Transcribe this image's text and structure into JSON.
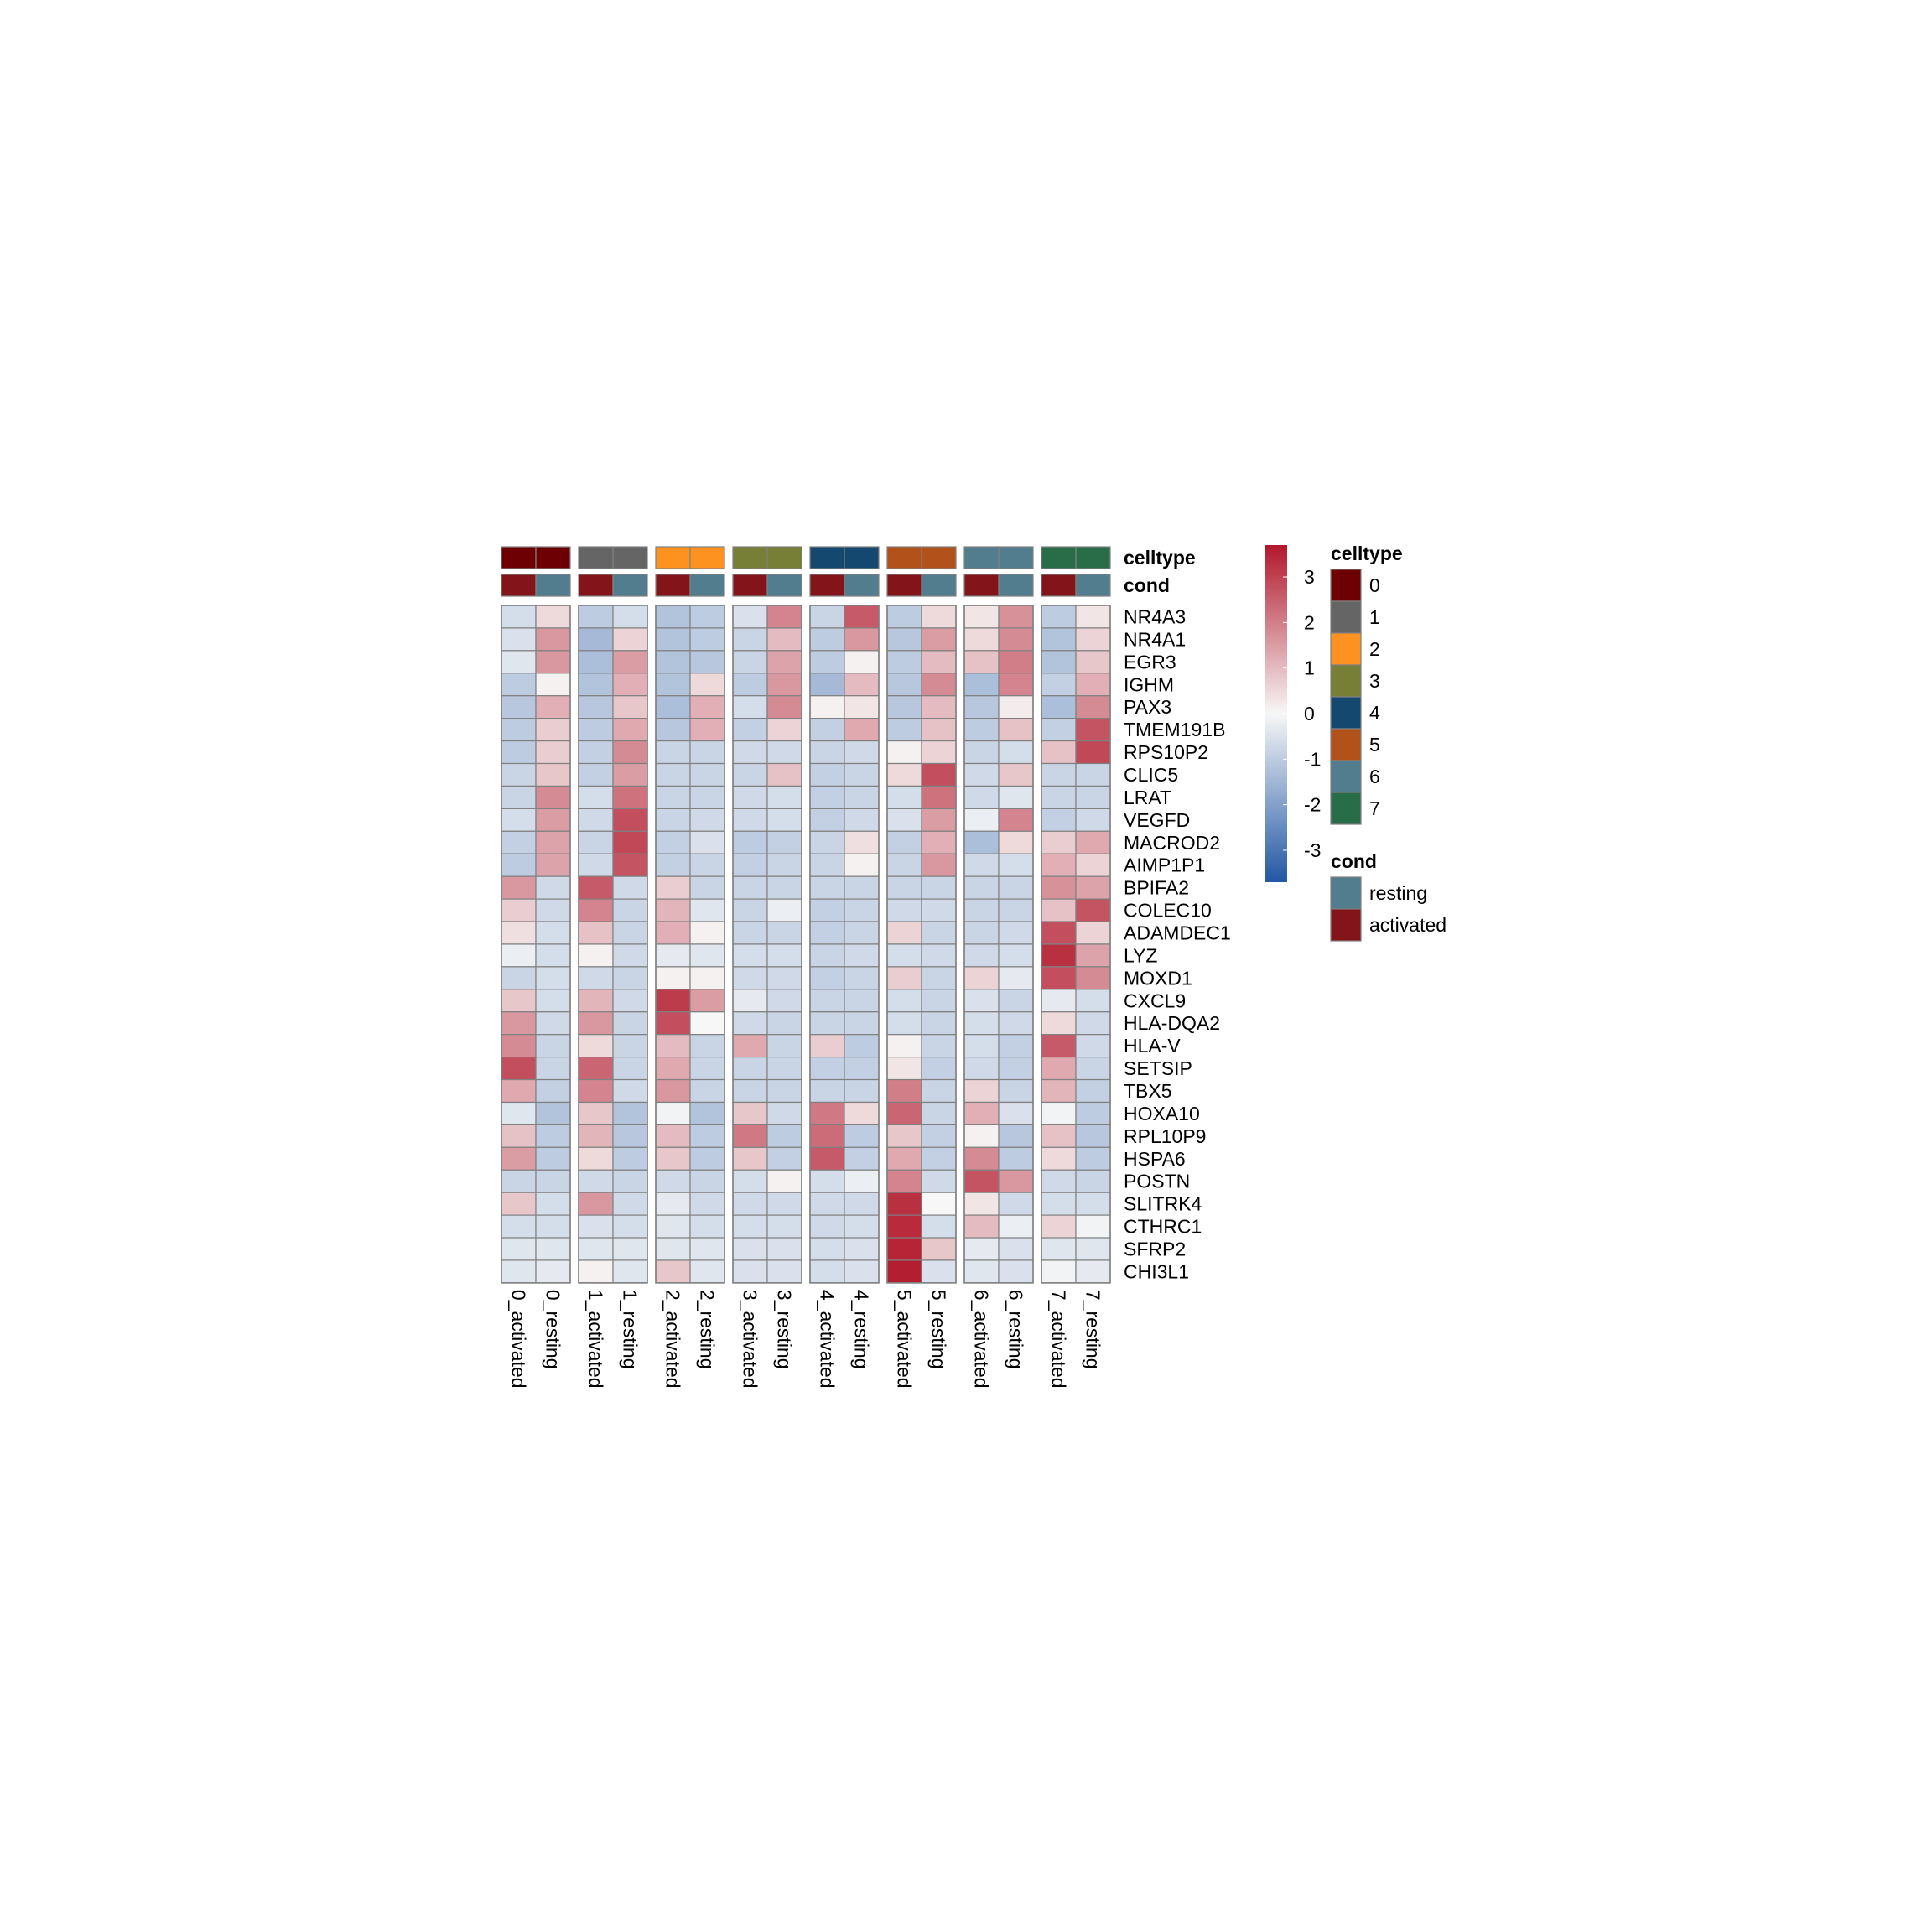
{
  "chart_data": {
    "type": "heatmap",
    "columns": [
      "0_activated",
      "0_resting",
      "1_activated",
      "1_resting",
      "2_activated",
      "2_resting",
      "3_activated",
      "3_resting",
      "4_activated",
      "4_resting",
      "5_activated",
      "5_resting",
      "6_activated",
      "6_resting",
      "7_activated",
      "7_resting"
    ],
    "rows": [
      "NR4A3",
      "NR4A1",
      "EGR3",
      "IGHM",
      "PAX3",
      "TMEM191B",
      "RPS10P2",
      "CLIC5",
      "LRAT",
      "VEGFD",
      "MACROD2",
      "AIMP1P1",
      "BPIFA2",
      "COLEC10",
      "ADAMDEC1",
      "LYZ",
      "MOXD1",
      "CXCL9",
      "HLA-DQA2",
      "HLA-V",
      "SETSIP",
      "TBX5",
      "HOXA10",
      "RPL10P9",
      "HSPA6",
      "POSTN",
      "SLITRK4",
      "CTHRC1",
      "SFRP2",
      "CHI3L1"
    ],
    "values": [
      [
        -0.6,
        0.5,
        -1.0,
        -0.6,
        -1.2,
        -1.0,
        -0.5,
        1.9,
        -0.8,
        2.6,
        -1.0,
        0.5,
        0.3,
        1.7,
        -1.0,
        0.3
      ],
      [
        -0.5,
        1.6,
        -1.4,
        0.6,
        -1.2,
        -1.0,
        -0.8,
        1.0,
        -1.0,
        1.6,
        -1.1,
        1.5,
        0.5,
        1.8,
        -1.2,
        0.6
      ],
      [
        -0.4,
        1.6,
        -1.3,
        1.5,
        -1.2,
        -1.1,
        -0.8,
        1.4,
        -1.0,
        0.1,
        -1.0,
        1.0,
        0.9,
        2.0,
        -1.2,
        0.8
      ],
      [
        -1.0,
        0.1,
        -1.2,
        1.2,
        -1.2,
        0.5,
        -1.0,
        1.6,
        -1.4,
        1.0,
        -1.1,
        1.8,
        -1.3,
        1.9,
        -0.9,
        1.2
      ],
      [
        -1.1,
        1.2,
        -1.1,
        0.8,
        -1.3,
        1.2,
        -0.6,
        1.8,
        0.1,
        0.3,
        -1.1,
        1.0,
        -1.1,
        0.2,
        -1.3,
        1.8
      ],
      [
        -1.0,
        0.7,
        -1.0,
        1.3,
        -1.1,
        1.2,
        -0.9,
        0.6,
        -0.9,
        1.3,
        -1.0,
        0.9,
        -1.0,
        0.9,
        -0.9,
        2.7
      ],
      [
        -1.0,
        0.7,
        -0.9,
        1.8,
        -0.8,
        -0.8,
        -0.7,
        -0.7,
        -0.8,
        -0.7,
        0.1,
        0.6,
        -0.8,
        -0.6,
        0.9,
        2.9
      ],
      [
        -0.8,
        0.8,
        -0.9,
        1.5,
        -0.8,
        -0.8,
        -0.8,
        0.9,
        -0.9,
        -0.8,
        0.5,
        2.8,
        -0.7,
        0.8,
        -0.8,
        -0.8
      ],
      [
        -0.8,
        1.8,
        -0.6,
        2.2,
        -0.8,
        -0.8,
        -0.7,
        -0.6,
        -0.9,
        -0.8,
        -0.6,
        2.2,
        -0.7,
        -0.4,
        -0.8,
        -0.8
      ],
      [
        -0.6,
        1.5,
        -0.7,
        2.8,
        -0.8,
        -0.7,
        -0.7,
        -0.6,
        -0.9,
        -0.7,
        -0.5,
        1.5,
        -0.2,
        1.9,
        -0.9,
        -0.7
      ],
      [
        -0.9,
        1.4,
        -0.8,
        2.9,
        -0.9,
        -0.5,
        -1.0,
        -0.9,
        -0.8,
        0.4,
        -0.9,
        1.2,
        -1.3,
        0.5,
        0.7,
        1.3
      ],
      [
        -1.0,
        1.4,
        -0.7,
        2.7,
        -0.9,
        -0.8,
        -0.9,
        -0.8,
        -0.8,
        0.1,
        -0.8,
        1.6,
        -0.7,
        -0.6,
        1.2,
        0.6
      ],
      [
        1.6,
        -0.7,
        2.6,
        -0.7,
        0.7,
        -0.8,
        -0.8,
        -0.8,
        -0.8,
        -0.8,
        -0.8,
        -0.8,
        -0.8,
        -0.8,
        1.7,
        1.4
      ],
      [
        0.7,
        -0.7,
        1.9,
        -0.8,
        1.1,
        -0.4,
        -0.8,
        -0.2,
        -0.9,
        -0.8,
        -0.7,
        -0.7,
        -0.8,
        -0.8,
        0.9,
        2.7
      ],
      [
        0.4,
        -0.6,
        0.9,
        -0.8,
        1.2,
        0.1,
        -0.8,
        -0.8,
        -0.9,
        -0.8,
        0.6,
        -0.8,
        -0.8,
        -0.7,
        2.8,
        0.6
      ],
      [
        -0.2,
        -0.6,
        0.1,
        -0.7,
        -0.3,
        -0.4,
        -0.6,
        -0.6,
        -0.8,
        -0.7,
        -0.6,
        -0.7,
        -0.7,
        -0.6,
        3.3,
        1.4
      ],
      [
        -0.8,
        -0.6,
        -0.7,
        -0.8,
        0.1,
        0.1,
        -0.7,
        -0.7,
        -0.9,
        -0.8,
        0.7,
        -0.8,
        0.6,
        -0.3,
        2.8,
        1.8
      ],
      [
        0.8,
        -0.6,
        1.1,
        -0.7,
        3.1,
        1.5,
        -0.3,
        -0.7,
        -0.8,
        -0.8,
        -0.6,
        -0.8,
        -0.5,
        -0.8,
        -0.3,
        -0.6
      ],
      [
        1.6,
        -0.7,
        1.6,
        -0.8,
        2.8,
        0.0,
        -0.7,
        -0.8,
        -0.8,
        -0.8,
        -0.6,
        -0.8,
        -0.6,
        -0.7,
        0.5,
        -0.7
      ],
      [
        1.8,
        -0.8,
        0.5,
        -0.8,
        1.0,
        -0.8,
        1.3,
        -0.8,
        0.7,
        -1.0,
        0.1,
        -0.8,
        -0.6,
        -0.9,
        2.6,
        -0.7
      ],
      [
        2.8,
        -0.8,
        2.4,
        -0.8,
        1.3,
        -0.8,
        -0.8,
        -0.8,
        -0.9,
        -0.9,
        0.3,
        -0.9,
        -0.7,
        -0.9,
        1.3,
        -0.8
      ],
      [
        1.3,
        -0.9,
        1.9,
        -0.7,
        1.6,
        -0.8,
        -0.8,
        -0.8,
        -0.8,
        -0.8,
        2.0,
        -0.8,
        0.6,
        -0.8,
        1.1,
        -0.9
      ],
      [
        -0.4,
        -1.2,
        0.8,
        -1.2,
        -0.1,
        -1.2,
        0.8,
        -0.7,
        2.1,
        0.5,
        2.4,
        -0.8,
        1.2,
        -0.5,
        -0.1,
        -1.0
      ],
      [
        0.9,
        -1.0,
        1.1,
        -1.1,
        1.0,
        -1.0,
        2.1,
        -1.0,
        2.3,
        -1.0,
        0.8,
        -0.9,
        0.1,
        -1.1,
        0.9,
        -1.1
      ],
      [
        1.5,
        -1.0,
        0.5,
        -1.0,
        0.8,
        -1.0,
        0.8,
        -0.9,
        2.6,
        -0.9,
        1.3,
        -0.9,
        1.8,
        -1.0,
        0.5,
        -1.0
      ],
      [
        -0.8,
        -0.8,
        -0.7,
        -0.8,
        -0.7,
        -0.8,
        -0.6,
        0.1,
        -0.6,
        -0.2,
        1.9,
        -0.7,
        2.7,
        1.6,
        -0.7,
        -0.8
      ],
      [
        0.8,
        -0.6,
        1.6,
        -0.7,
        -0.3,
        -0.7,
        -0.7,
        -0.7,
        -0.7,
        -0.7,
        3.3,
        0.0,
        0.3,
        -0.7,
        -0.6,
        -0.6
      ],
      [
        -0.6,
        -0.6,
        -0.5,
        -0.6,
        -0.4,
        -0.6,
        -0.6,
        -0.6,
        -0.7,
        -0.6,
        3.4,
        -0.6,
        1.0,
        -0.2,
        0.6,
        -0.1
      ],
      [
        -0.4,
        -0.4,
        -0.4,
        -0.4,
        -0.4,
        -0.4,
        -0.5,
        -0.5,
        -0.6,
        -0.5,
        3.5,
        0.8,
        -0.3,
        -0.5,
        -0.4,
        -0.4
      ],
      [
        -0.4,
        -0.3,
        0.1,
        -0.4,
        0.8,
        -0.4,
        -0.5,
        -0.5,
        -0.6,
        -0.5,
        3.6,
        -0.5,
        -0.4,
        -0.5,
        -0.1,
        -0.3
      ]
    ],
    "column_annotations": {
      "celltype": [
        "0",
        "0",
        "1",
        "1",
        "2",
        "2",
        "3",
        "3",
        "4",
        "4",
        "5",
        "5",
        "6",
        "6",
        "7",
        "7"
      ],
      "cond": [
        "activated",
        "resting",
        "activated",
        "resting",
        "activated",
        "resting",
        "activated",
        "resting",
        "activated",
        "resting",
        "activated",
        "resting",
        "activated",
        "resting",
        "activated",
        "resting"
      ]
    },
    "annotation_labels": [
      "celltype",
      "cond"
    ],
    "column_groups": [
      "0",
      "1",
      "2",
      "3",
      "4",
      "5",
      "6",
      "7"
    ],
    "colorbar": {
      "ticks": [
        "3",
        "2",
        "1",
        "0",
        "-1",
        "-2",
        "-3"
      ],
      "tick_values": [
        3,
        2,
        1,
        0,
        -1,
        -2,
        -3
      ],
      "range": [
        -3.7,
        3.7
      ],
      "colors": [
        "#2257A4",
        "#F7F7F7",
        "#B2182B"
      ]
    },
    "legends": {
      "celltype": {
        "title": "celltype",
        "entries": [
          {
            "label": "0",
            "color": "#6C0003"
          },
          {
            "label": "1",
            "color": "#656565"
          },
          {
            "label": "2",
            "color": "#FE9221"
          },
          {
            "label": "3",
            "color": "#777F37"
          },
          {
            "label": "4",
            "color": "#14486E"
          },
          {
            "label": "5",
            "color": "#B25119"
          },
          {
            "label": "6",
            "color": "#527D8E"
          },
          {
            "label": "7",
            "color": "#286D48"
          }
        ]
      },
      "cond": {
        "title": "cond",
        "entries": [
          {
            "label": "resting",
            "color": "#527D8E"
          },
          {
            "label": "activated",
            "color": "#82141A"
          }
        ]
      }
    },
    "cell_border_color": "#808080"
  }
}
